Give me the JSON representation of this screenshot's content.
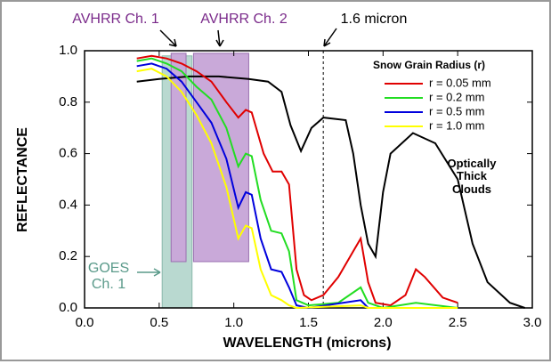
{
  "chart_data": {
    "type": "line",
    "xlabel": "WAVELENGTH (microns)",
    "ylabel": "REFLECTANCE",
    "xlim": [
      0,
      3
    ],
    "ylim": [
      0,
      1
    ],
    "xticks": [
      {
        "value": 0,
        "label": "0.0"
      },
      0.5,
      {
        "value": 1,
        "label": "1.0"
      },
      1.5,
      {
        "value": 2,
        "label": "2.0"
      },
      2.5,
      {
        "value": 3,
        "label": "3.0"
      }
    ],
    "yticks": [
      {
        "value": 0,
        "label": "0.0"
      },
      0.2,
      0.4,
      0.6,
      0.8,
      {
        "value": 1,
        "label": "1.0"
      }
    ],
    "legend_title": "Snow Grain Radius (r)",
    "legend": "upper right",
    "series": [
      {
        "name": "r = 0.05 mm",
        "color": "#e00000",
        "x": [
          0.35,
          0.45,
          0.55,
          0.65,
          0.75,
          0.85,
          0.95,
          1.03,
          1.08,
          1.12,
          1.2,
          1.26,
          1.32,
          1.37,
          1.42,
          1.47,
          1.52,
          1.6,
          1.7,
          1.8,
          1.85,
          1.9,
          1.95,
          2.05,
          2.15,
          2.22,
          2.28,
          2.4,
          2.5
        ],
        "values": [
          0.97,
          0.98,
          0.97,
          0.95,
          0.92,
          0.88,
          0.8,
          0.74,
          0.77,
          0.76,
          0.6,
          0.53,
          0.53,
          0.48,
          0.15,
          0.05,
          0.03,
          0.05,
          0.12,
          0.22,
          0.27,
          0.1,
          0.02,
          0.01,
          0.05,
          0.15,
          0.12,
          0.04,
          0.02
        ]
      },
      {
        "name": "r = 0.2 mm",
        "color": "#22dd22",
        "x": [
          0.35,
          0.45,
          0.55,
          0.65,
          0.75,
          0.85,
          0.95,
          1.03,
          1.08,
          1.12,
          1.18,
          1.25,
          1.32,
          1.37,
          1.42,
          1.5,
          1.7,
          1.85,
          1.9,
          2.0,
          2.22,
          2.5
        ],
        "values": [
          0.96,
          0.97,
          0.95,
          0.92,
          0.86,
          0.81,
          0.7,
          0.55,
          0.6,
          0.59,
          0.42,
          0.3,
          0.29,
          0.22,
          0.03,
          0.01,
          0.02,
          0.08,
          0.02,
          0,
          0.02,
          0
        ]
      },
      {
        "name": "r = 0.5 mm",
        "color": "#0000dd",
        "x": [
          0.35,
          0.45,
          0.55,
          0.65,
          0.75,
          0.85,
          0.95,
          1.03,
          1.08,
          1.12,
          1.18,
          1.25,
          1.32,
          1.37,
          1.42,
          1.5,
          1.85,
          1.9,
          2.5
        ],
        "values": [
          0.94,
          0.95,
          0.93,
          0.88,
          0.8,
          0.72,
          0.58,
          0.39,
          0.45,
          0.44,
          0.27,
          0.15,
          0.14,
          0.08,
          0.01,
          0,
          0.03,
          0,
          0
        ]
      },
      {
        "name": "r = 1.0 mm",
        "color": "#ffff00",
        "x": [
          0.35,
          0.45,
          0.55,
          0.65,
          0.75,
          0.85,
          0.95,
          1.03,
          1.08,
          1.12,
          1.18,
          1.25,
          1.32,
          1.37,
          1.42,
          1.85,
          1.9,
          2.5
        ],
        "values": [
          0.92,
          0.93,
          0.9,
          0.84,
          0.75,
          0.64,
          0.47,
          0.27,
          0.32,
          0.31,
          0.15,
          0.05,
          0.03,
          0.01,
          0,
          0.01,
          0,
          0
        ]
      }
    ],
    "cloud_series": {
      "name": "Optically Thick Clouds",
      "color": "#000000",
      "x": [
        0.35,
        0.5,
        0.7,
        0.9,
        1.1,
        1.23,
        1.32,
        1.38,
        1.45,
        1.52,
        1.6,
        1.75,
        1.8,
        1.85,
        1.9,
        1.95,
        2.0,
        2.05,
        2.2,
        2.35,
        2.5,
        2.6,
        2.7,
        2.85,
        2.95
      ],
      "values": [
        0.88,
        0.89,
        0.9,
        0.9,
        0.89,
        0.88,
        0.84,
        0.71,
        0.61,
        0.7,
        0.74,
        0.73,
        0.6,
        0.4,
        0.25,
        0.2,
        0.45,
        0.6,
        0.68,
        0.64,
        0.5,
        0.25,
        0.1,
        0.02,
        0
      ]
    },
    "bands": [
      {
        "label": "GOES Ch. 1",
        "color": "#b9d9d0",
        "x0": 0.52,
        "x1": 0.72,
        "y0": 0,
        "y1": 0.98
      },
      {
        "label": "AVHRR Ch. 1",
        "color": "#c9a9d9",
        "x0": 0.58,
        "x1": 0.68,
        "y0": 0.18,
        "y1": 0.99
      },
      {
        "label": "AVHRR Ch. 2",
        "color": "#c9a9d9",
        "x0": 0.73,
        "x1": 1.1,
        "y0": 0.18,
        "y1": 0.99
      }
    ],
    "vline": {
      "x": 1.6,
      "label": "1.6 micron"
    }
  }
}
